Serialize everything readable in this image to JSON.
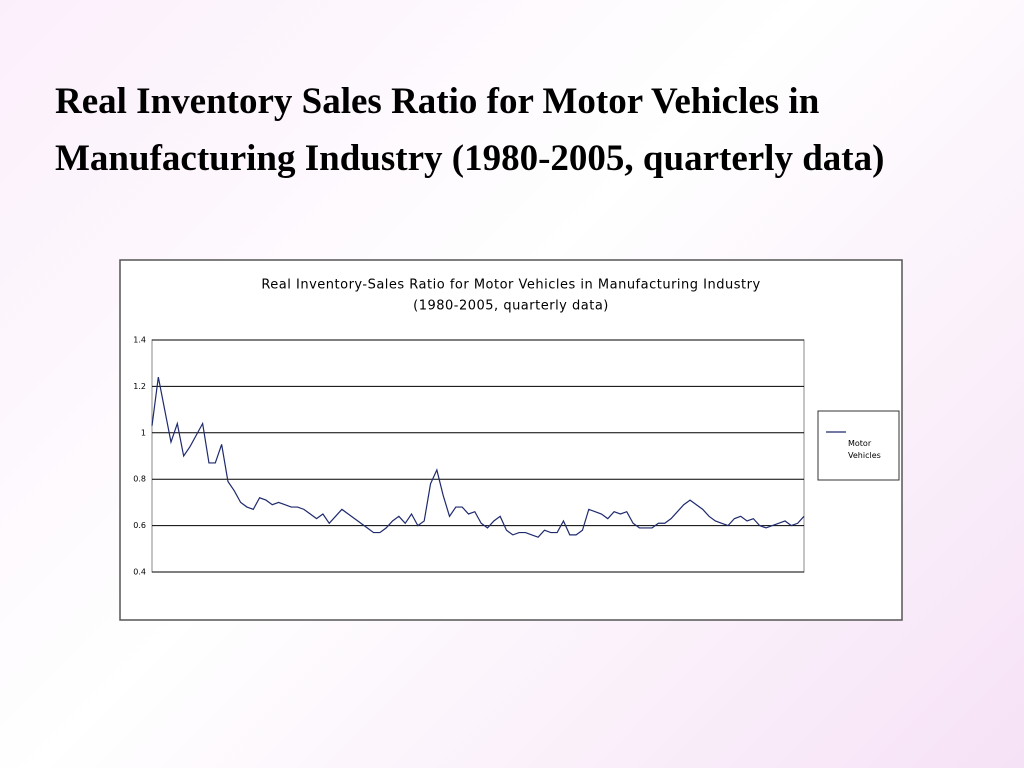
{
  "slide_title": "Real Inventory Sales Ratio for Motor Vehicles in Manufacturing Industry (1980-2005, quarterly data)",
  "chart_data": {
    "type": "line",
    "title": "Real Inventory-Sales Ratio for Motor Vehicles in Manufacturing Industry",
    "subtitle": "(1980-2005, quarterly data)",
    "ylim": [
      0.4,
      1.4
    ],
    "yticks": [
      0.4,
      0.6,
      0.8,
      1,
      1.2,
      1.4
    ],
    "grid": true,
    "legend": "right",
    "series": [
      {
        "name": "Motor Vehicles",
        "color": "#1f2a6e",
        "values": [
          1.03,
          1.24,
          1.1,
          0.96,
          1.04,
          0.9,
          0.94,
          0.99,
          1.04,
          0.87,
          0.87,
          0.95,
          0.79,
          0.75,
          0.7,
          0.68,
          0.67,
          0.72,
          0.71,
          0.69,
          0.7,
          0.69,
          0.68,
          0.68,
          0.67,
          0.65,
          0.63,
          0.65,
          0.61,
          0.64,
          0.67,
          0.65,
          0.63,
          0.61,
          0.59,
          0.57,
          0.57,
          0.59,
          0.62,
          0.64,
          0.61,
          0.65,
          0.6,
          0.62,
          0.78,
          0.84,
          0.73,
          0.64,
          0.68,
          0.68,
          0.65,
          0.66,
          0.61,
          0.59,
          0.62,
          0.64,
          0.58,
          0.56,
          0.57,
          0.57,
          0.56,
          0.55,
          0.58,
          0.57,
          0.57,
          0.62,
          0.56,
          0.56,
          0.58,
          0.67,
          0.66,
          0.65,
          0.63,
          0.66,
          0.65,
          0.66,
          0.61,
          0.59,
          0.59,
          0.59,
          0.61,
          0.61,
          0.63,
          0.66,
          0.69,
          0.71,
          0.69,
          0.67,
          0.64,
          0.62,
          0.61,
          0.6,
          0.63,
          0.64,
          0.62,
          0.63,
          0.6,
          0.59,
          0.6,
          0.61,
          0.62,
          0.6,
          0.61,
          0.64
        ]
      }
    ]
  }
}
